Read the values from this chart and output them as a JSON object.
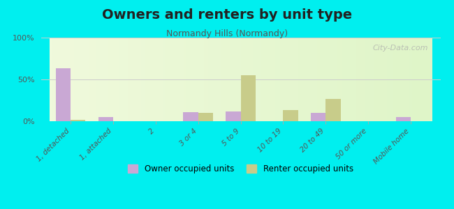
{
  "title": "Owners and renters by unit type",
  "subtitle": "Normandy Hills (Normandy)",
  "categories": [
    "1, detached",
    "1, attached",
    "2",
    "3 or 4",
    "5 to 9",
    "10 to 19",
    "20 to 49",
    "50 or more",
    "Mobile home"
  ],
  "owner_values": [
    63,
    5,
    0,
    11,
    12,
    0,
    10,
    0,
    5
  ],
  "renter_values": [
    2,
    0,
    0,
    10,
    55,
    13,
    27,
    0,
    0
  ],
  "owner_color": "#c9a8d4",
  "renter_color": "#c8cc8a",
  "background_top": "#e8f5d0",
  "background_bottom": "#f5fff0",
  "fig_bg": "#00efef",
  "ylim": [
    0,
    100
  ],
  "yticks": [
    0,
    50,
    100
  ],
  "ytick_labels": [
    "0%",
    "50%",
    "100%"
  ],
  "watermark": "City-Data.com",
  "bar_width": 0.35,
  "legend_owner": "Owner occupied units",
  "legend_renter": "Renter occupied units"
}
